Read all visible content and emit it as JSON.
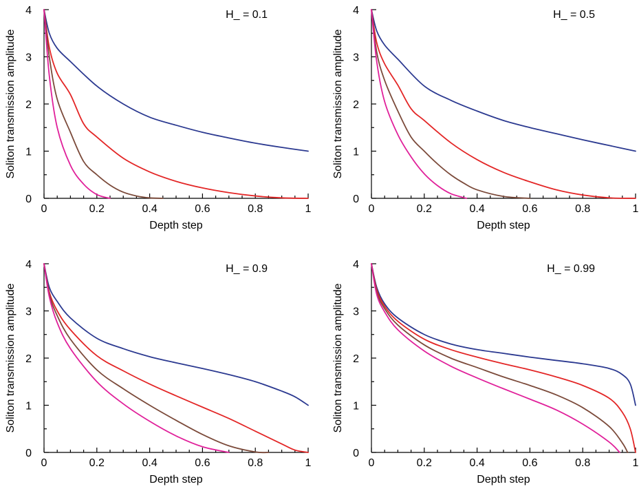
{
  "chart_data": [
    {
      "type": "line",
      "annotation": "H_ = 0.1",
      "xlabel": "Depth step",
      "ylabel": "Soliton transmission amplitude",
      "xlim": [
        0,
        1
      ],
      "ylim": [
        0,
        4
      ],
      "xticks": [
        "0",
        "0.2",
        "0.4",
        "0.6",
        "0.8",
        "1"
      ],
      "yticks": [
        "0",
        "1",
        "2",
        "3",
        "4"
      ],
      "series": [
        {
          "color": "#2b3990",
          "x": [
            0,
            0.02,
            0.05,
            0.1,
            0.2,
            0.3,
            0.4,
            0.5,
            0.6,
            0.7,
            0.8,
            0.9,
            1.0
          ],
          "y": [
            4,
            3.5,
            3.18,
            2.9,
            2.38,
            2.0,
            1.72,
            1.55,
            1.4,
            1.28,
            1.17,
            1.08,
            1.0
          ]
        },
        {
          "color": "#e32626",
          "x": [
            0,
            0.02,
            0.05,
            0.1,
            0.15,
            0.2,
            0.3,
            0.4,
            0.5,
            0.6,
            0.7,
            0.8,
            0.9,
            1.0
          ],
          "y": [
            4,
            3.2,
            2.65,
            2.2,
            1.58,
            1.3,
            0.85,
            0.56,
            0.36,
            0.22,
            0.12,
            0.05,
            0.01,
            0.0
          ]
        },
        {
          "color": "#7b4a3a",
          "x": [
            0,
            0.02,
            0.05,
            0.1,
            0.15,
            0.2,
            0.25,
            0.3,
            0.35,
            0.4,
            0.45
          ],
          "y": [
            4,
            3.0,
            2.1,
            1.4,
            0.78,
            0.5,
            0.28,
            0.13,
            0.05,
            0.01,
            0.0
          ]
        },
        {
          "color": "#e0209a",
          "x": [
            0,
            0.02,
            0.05,
            0.1,
            0.15,
            0.2,
            0.25
          ],
          "y": [
            4,
            2.6,
            1.5,
            0.7,
            0.3,
            0.08,
            0.0
          ]
        }
      ]
    },
    {
      "type": "line",
      "annotation": "H_ = 0.5",
      "xlabel": "Depth step",
      "ylabel": "Soliton transmission amplitude",
      "xlim": [
        0,
        1
      ],
      "ylim": [
        0,
        4
      ],
      "xticks": [
        "0",
        "0.2",
        "0.4",
        "0.6",
        "0.8",
        "1"
      ],
      "yticks": [
        "0",
        "1",
        "2",
        "3",
        "4"
      ],
      "series": [
        {
          "color": "#2b3990",
          "x": [
            0,
            0.02,
            0.05,
            0.1,
            0.2,
            0.3,
            0.4,
            0.5,
            0.6,
            0.7,
            0.8,
            0.9,
            1.0
          ],
          "y": [
            4,
            3.55,
            3.25,
            2.95,
            2.38,
            2.08,
            1.85,
            1.65,
            1.5,
            1.37,
            1.24,
            1.12,
            1.0
          ]
        },
        {
          "color": "#e32626",
          "x": [
            0,
            0.02,
            0.05,
            0.1,
            0.15,
            0.2,
            0.3,
            0.4,
            0.5,
            0.6,
            0.7,
            0.8,
            0.9,
            1.0
          ],
          "y": [
            4,
            3.3,
            2.85,
            2.4,
            1.9,
            1.65,
            1.18,
            0.82,
            0.55,
            0.35,
            0.18,
            0.07,
            0.01,
            0.0
          ]
        },
        {
          "color": "#7b4a3a",
          "x": [
            0,
            0.02,
            0.05,
            0.1,
            0.15,
            0.2,
            0.25,
            0.3,
            0.35,
            0.4,
            0.5,
            0.6
          ],
          "y": [
            4,
            3.1,
            2.5,
            1.85,
            1.3,
            1.0,
            0.73,
            0.5,
            0.32,
            0.18,
            0.04,
            0.0
          ]
        },
        {
          "color": "#e0209a",
          "x": [
            0,
            0.02,
            0.05,
            0.1,
            0.15,
            0.2,
            0.25,
            0.3,
            0.36
          ],
          "y": [
            4,
            2.9,
            2.05,
            1.35,
            0.88,
            0.52,
            0.27,
            0.1,
            0.0
          ]
        }
      ]
    },
    {
      "type": "line",
      "annotation": "H_ = 0.9",
      "xlabel": "Depth step",
      "ylabel": "Soliton transmission amplitude",
      "xlim": [
        0,
        1
      ],
      "ylim": [
        0,
        4
      ],
      "xticks": [
        "0",
        "0.2",
        "0.4",
        "0.6",
        "0.8",
        "1"
      ],
      "yticks": [
        "0",
        "1",
        "2",
        "3",
        "4"
      ],
      "series": [
        {
          "color": "#2b3990",
          "x": [
            0,
            0.02,
            0.05,
            0.1,
            0.2,
            0.3,
            0.4,
            0.5,
            0.6,
            0.7,
            0.8,
            0.9,
            0.95,
            1.0
          ],
          "y": [
            4,
            3.5,
            3.2,
            2.85,
            2.42,
            2.2,
            2.03,
            1.9,
            1.78,
            1.65,
            1.5,
            1.3,
            1.18,
            1.0
          ]
        },
        {
          "color": "#e32626",
          "x": [
            0,
            0.02,
            0.05,
            0.1,
            0.2,
            0.3,
            0.4,
            0.5,
            0.6,
            0.7,
            0.8,
            0.9,
            0.95,
            1.0
          ],
          "y": [
            4,
            3.4,
            3.0,
            2.6,
            2.05,
            1.73,
            1.45,
            1.2,
            0.96,
            0.72,
            0.45,
            0.18,
            0.05,
            0.0
          ]
        },
        {
          "color": "#7b4a3a",
          "x": [
            0,
            0.02,
            0.05,
            0.1,
            0.2,
            0.3,
            0.4,
            0.5,
            0.6,
            0.7,
            0.8,
            0.85
          ],
          "y": [
            4,
            3.35,
            2.9,
            2.4,
            1.75,
            1.35,
            1.0,
            0.68,
            0.38,
            0.14,
            0.01,
            0.0
          ]
        },
        {
          "color": "#e0209a",
          "x": [
            0,
            0.02,
            0.05,
            0.1,
            0.2,
            0.3,
            0.4,
            0.5,
            0.6,
            0.7
          ],
          "y": [
            4,
            3.3,
            2.75,
            2.2,
            1.5,
            1.03,
            0.66,
            0.35,
            0.12,
            0.0
          ]
        }
      ]
    },
    {
      "type": "line",
      "annotation": "H_ = 0.99",
      "xlabel": "Depth step",
      "ylabel": "Soliton transmission amplitude",
      "xlim": [
        0,
        1
      ],
      "ylim": [
        0,
        4
      ],
      "xticks": [
        "0",
        "0.2",
        "0.4",
        "0.6",
        "0.8",
        "1"
      ],
      "yticks": [
        "0",
        "1",
        "2",
        "3",
        "4"
      ],
      "series": [
        {
          "color": "#2b3990",
          "x": [
            0,
            0.02,
            0.05,
            0.1,
            0.2,
            0.3,
            0.4,
            0.5,
            0.6,
            0.7,
            0.8,
            0.9,
            0.95,
            0.98,
            1.0
          ],
          "y": [
            4,
            3.5,
            3.15,
            2.85,
            2.5,
            2.3,
            2.18,
            2.1,
            2.02,
            1.95,
            1.88,
            1.78,
            1.65,
            1.45,
            1.0
          ]
        },
        {
          "color": "#e32626",
          "x": [
            0,
            0.02,
            0.05,
            0.1,
            0.2,
            0.3,
            0.4,
            0.5,
            0.6,
            0.7,
            0.8,
            0.9,
            0.95,
            0.98,
            1.0
          ],
          "y": [
            4,
            3.45,
            3.1,
            2.78,
            2.4,
            2.18,
            2.02,
            1.88,
            1.75,
            1.6,
            1.42,
            1.15,
            0.85,
            0.5,
            0.0
          ]
        },
        {
          "color": "#7b4a3a",
          "x": [
            0,
            0.02,
            0.05,
            0.1,
            0.2,
            0.3,
            0.4,
            0.5,
            0.6,
            0.7,
            0.8,
            0.9,
            0.95,
            0.97
          ],
          "y": [
            4,
            3.4,
            3.05,
            2.7,
            2.28,
            2.0,
            1.8,
            1.6,
            1.42,
            1.22,
            0.95,
            0.55,
            0.2,
            0.0
          ]
        },
        {
          "color": "#e0209a",
          "x": [
            0,
            0.02,
            0.05,
            0.1,
            0.2,
            0.3,
            0.4,
            0.5,
            0.6,
            0.7,
            0.8,
            0.9,
            0.94
          ],
          "y": [
            4,
            3.35,
            2.98,
            2.6,
            2.15,
            1.83,
            1.58,
            1.35,
            1.13,
            0.9,
            0.6,
            0.22,
            0.0
          ]
        }
      ]
    }
  ]
}
